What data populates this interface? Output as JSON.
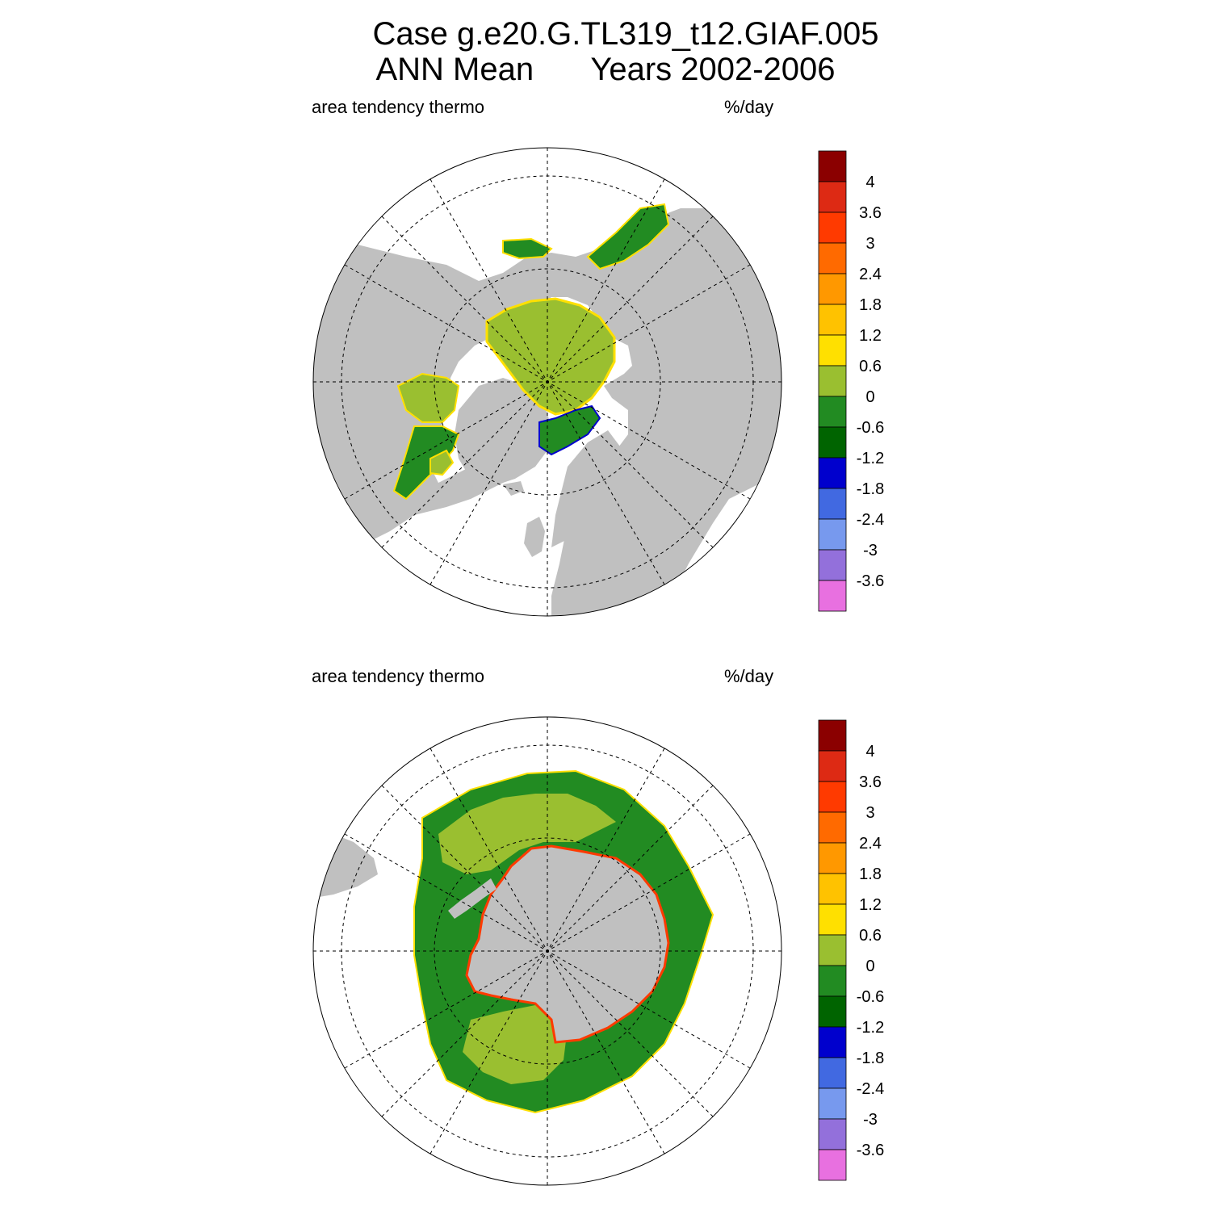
{
  "title": {
    "line1": "Case g.e20.G.TL319_t12.GIAF.005",
    "line2_left": "ANN Mean",
    "line2_right": "Years 2002-2006"
  },
  "panels": [
    {
      "id": "north",
      "left_label": "area tendency thermo",
      "right_label": "%/day"
    },
    {
      "id": "south",
      "left_label": "area tendency thermo",
      "right_label": "%/day"
    }
  ],
  "colorbar": {
    "labels": [
      "4",
      "3.6",
      "3",
      "2.4",
      "1.8",
      "1.2",
      "0.6",
      "0",
      "-0.6",
      "-1.2",
      "-1.8",
      "-2.4",
      "-3",
      "-3.6"
    ],
    "colors": [
      "#8b0000",
      "#dd2a14",
      "#ff3a00",
      "#ff6a00",
      "#ff9800",
      "#ffc200",
      "#ffe000",
      "#9abf30",
      "#228b22",
      "#006400",
      "#0000cd",
      "#4169e1",
      "#7799ee",
      "#9370db",
      "#e870e0"
    ]
  },
  "colors": {
    "land": "#c0c0c0",
    "ocean": "#ffffff",
    "ice_mean": "#9abf30",
    "ice_negative": "#228b22",
    "ice_edge_positive": "#ffe000",
    "ice_edge_strong": "#dd2a14"
  }
}
